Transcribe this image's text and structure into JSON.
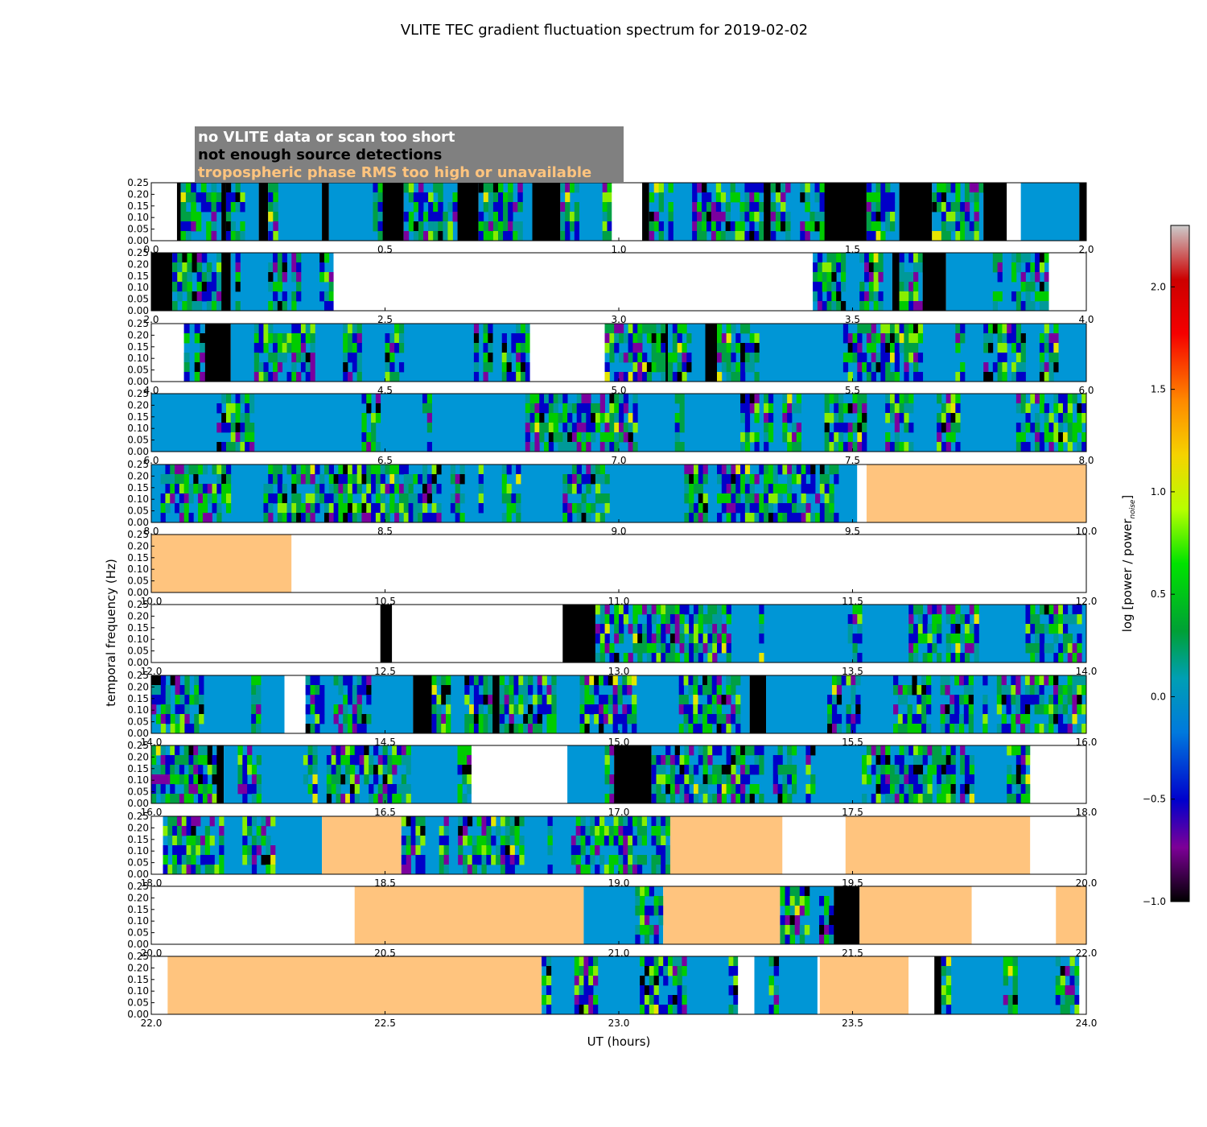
{
  "chart_data": {
    "type": "heatmap",
    "title": "VLITE TEC gradient fluctuation spectrum for 2019-02-02",
    "xlabel": "UT (hours)",
    "ylabel": "temporal frequency (Hz)",
    "ylim": [
      0,
      0.25
    ],
    "yticks": [
      "0.00",
      "0.05",
      "0.10",
      "0.15",
      "0.20",
      "0.25"
    ],
    "colorbar": {
      "label": "log [power / power",
      "label_sub": "noise",
      "label_end": "]",
      "range": [
        -1.0,
        2.3
      ],
      "ticks": [
        "−1.0",
        "−0.5",
        "0.0",
        "0.5",
        "1.0",
        "1.5",
        "2.0"
      ],
      "tick_values": [
        -1.0,
        -0.5,
        0.0,
        0.5,
        1.0,
        1.5,
        2.0
      ],
      "colormap": "spectral"
    },
    "legend": {
      "placement": "top-left",
      "items": [
        {
          "text": "no VLITE data or scan too short",
          "bg": "#808080",
          "color": "#ffffff"
        },
        {
          "text": "not enough source detections",
          "bg": "#808080",
          "color": "#000000"
        },
        {
          "text": "tropospheric phase RMS too high or unavailable",
          "bg": "#808080",
          "color": "#ffc47e"
        }
      ]
    },
    "status_colors": {
      "no_data": "#ffffff",
      "few_detections": "#000000",
      "troposphere": "#ffc47e",
      "base_spectrum": "#0096d6"
    },
    "panels": [
      {
        "range": [
          0,
          2
        ],
        "ticks": [
          "0.0",
          "0.5",
          "1.0",
          "1.5",
          "2.0"
        ],
        "segments": [
          [
            "nodata",
            0,
            0.055
          ],
          [
            "det",
            0.055,
            0.063
          ],
          [
            "spec",
            0.063,
            0.15
          ],
          [
            "det",
            0.15,
            0.16
          ],
          [
            "spec",
            0.16,
            0.23
          ],
          [
            "det",
            0.23,
            0.25
          ],
          [
            "spec",
            0.25,
            0.365
          ],
          [
            "det",
            0.365,
            0.38
          ],
          [
            "spec",
            0.38,
            0.495
          ],
          [
            "det",
            0.495,
            0.54
          ],
          [
            "spec",
            0.54,
            0.655
          ],
          [
            "det",
            0.655,
            0.7
          ],
          [
            "spec",
            0.7,
            0.815
          ],
          [
            "det",
            0.815,
            0.875
          ],
          [
            "spec",
            0.875,
            0.985
          ],
          [
            "nodata",
            0.985,
            1.05
          ],
          [
            "det",
            1.05,
            1.065
          ],
          [
            "spec",
            1.065,
            1.31
          ],
          [
            "det",
            1.31,
            1.325
          ],
          [
            "spec",
            1.325,
            1.44
          ],
          [
            "det",
            1.44,
            1.53
          ],
          [
            "spec",
            1.53,
            1.6
          ],
          [
            "det",
            1.6,
            1.67
          ],
          [
            "spec",
            1.67,
            1.78
          ],
          [
            "det",
            1.78,
            1.83
          ],
          [
            "nodata",
            1.83,
            1.86
          ],
          [
            "spec",
            1.86,
            1.985
          ],
          [
            "det",
            1.985,
            2.0
          ]
        ]
      },
      {
        "range": [
          2,
          4
        ],
        "ticks": [
          "2.0",
          "2.5",
          "3.0",
          "3.5",
          "4.0"
        ],
        "segments": [
          [
            "det",
            2.0,
            2.045
          ],
          [
            "spec",
            2.045,
            2.15
          ],
          [
            "det",
            2.15,
            2.17
          ],
          [
            "spec",
            2.17,
            2.39
          ],
          [
            "nodata",
            2.39,
            3.415
          ],
          [
            "spec",
            3.415,
            3.585
          ],
          [
            "det",
            3.585,
            3.6
          ],
          [
            "spec",
            3.6,
            3.65
          ],
          [
            "det",
            3.65,
            3.7
          ],
          [
            "spec",
            3.7,
            3.92
          ],
          [
            "nodata",
            3.92,
            4.0
          ]
        ]
      },
      {
        "range": [
          4,
          6
        ],
        "ticks": [
          "4.0",
          "4.5",
          "5.0",
          "5.5",
          "6.0"
        ],
        "segments": [
          [
            "nodata",
            4.0,
            4.07
          ],
          [
            "spec",
            4.07,
            4.115
          ],
          [
            "det",
            4.115,
            4.17
          ],
          [
            "spec",
            4.17,
            4.81
          ],
          [
            "nodata",
            4.81,
            4.97
          ],
          [
            "spec",
            4.97,
            5.1
          ],
          [
            "det",
            5.1,
            5.105
          ],
          [
            "spec",
            5.105,
            5.185
          ],
          [
            "det",
            5.185,
            5.21
          ],
          [
            "spec",
            5.21,
            6.0
          ]
        ]
      },
      {
        "range": [
          6,
          8
        ],
        "ticks": [
          "6.0",
          "6.5",
          "7.0",
          "7.5",
          "8.0"
        ],
        "segments": [
          [
            "spec",
            6.0,
            8.0
          ]
        ]
      },
      {
        "range": [
          8,
          10
        ],
        "ticks": [
          "8.0",
          "8.5",
          "9.0",
          "9.5",
          "10.0"
        ],
        "segments": [
          [
            "spec",
            8.0,
            9.51
          ],
          [
            "nodata",
            9.51,
            9.53
          ],
          [
            "tropo",
            9.53,
            10.0
          ]
        ]
      },
      {
        "range": [
          10,
          12
        ],
        "ticks": [
          "10.0",
          "10.5",
          "11.0",
          "11.5",
          "12.0"
        ],
        "segments": [
          [
            "tropo",
            10.0,
            10.3
          ],
          [
            "nodata",
            10.3,
            12.0
          ]
        ]
      },
      {
        "range": [
          12,
          14
        ],
        "ticks": [
          "12.0",
          "12.5",
          "13.0",
          "13.5",
          "14.0"
        ],
        "segments": [
          [
            "nodata",
            12.0,
            12.49
          ],
          [
            "det",
            12.49,
            12.515
          ],
          [
            "nodata",
            12.515,
            12.88
          ],
          [
            "det",
            12.88,
            12.95
          ],
          [
            "spec",
            12.95,
            14.0
          ]
        ]
      },
      {
        "range": [
          14,
          16
        ],
        "ticks": [
          "14.0",
          "14.5",
          "15.0",
          "15.5",
          "16.0"
        ],
        "segments": [
          [
            "spec",
            14.0,
            14.285
          ],
          [
            "nodata",
            14.285,
            14.33
          ],
          [
            "spec",
            14.33,
            14.56
          ],
          [
            "det",
            14.56,
            14.6
          ],
          [
            "spec",
            14.6,
            14.73
          ],
          [
            "det",
            14.73,
            14.745
          ],
          [
            "spec",
            14.745,
            15.28
          ],
          [
            "det",
            15.28,
            15.315
          ],
          [
            "spec",
            15.315,
            16.0
          ]
        ]
      },
      {
        "range": [
          16,
          18
        ],
        "ticks": [
          "16.0",
          "16.5",
          "17.0",
          "17.5",
          "18.0"
        ],
        "segments": [
          [
            "spec",
            16.0,
            16.14
          ],
          [
            "det",
            16.14,
            16.155
          ],
          [
            "spec",
            16.155,
            16.685
          ],
          [
            "nodata",
            16.685,
            16.89
          ],
          [
            "spec",
            16.89,
            16.99
          ],
          [
            "det",
            16.99,
            17.07
          ],
          [
            "spec",
            17.07,
            17.88
          ],
          [
            "nodata",
            17.88,
            18.0
          ]
        ]
      },
      {
        "range": [
          18,
          20
        ],
        "ticks": [
          "18.0",
          "18.5",
          "19.0",
          "19.5",
          "20.0"
        ],
        "segments": [
          [
            "nodata",
            18.0,
            18.025
          ],
          [
            "spec",
            18.025,
            18.365
          ],
          [
            "tropo",
            18.365,
            18.535
          ],
          [
            "spec",
            18.535,
            19.11
          ],
          [
            "tropo",
            19.11,
            19.35
          ],
          [
            "nodata",
            19.35,
            19.485
          ],
          [
            "tropo",
            19.485,
            19.88
          ],
          [
            "nodata",
            19.88,
            20.0
          ]
        ]
      },
      {
        "range": [
          20,
          22
        ],
        "ticks": [
          "20.0",
          "20.5",
          "21.0",
          "21.5",
          "22.0"
        ],
        "segments": [
          [
            "nodata",
            20.0,
            20.435
          ],
          [
            "tropo",
            20.435,
            20.925
          ],
          [
            "spec",
            20.925,
            21.095
          ],
          [
            "tropo",
            21.095,
            21.345
          ],
          [
            "spec",
            21.345,
            21.46
          ],
          [
            "det",
            21.46,
            21.515
          ],
          [
            "tropo",
            21.515,
            21.755
          ],
          [
            "nodata",
            21.755,
            21.935
          ],
          [
            "tropo",
            21.935,
            22.0
          ]
        ]
      },
      {
        "range": [
          22,
          24
        ],
        "ticks": [
          "22.0",
          "22.5",
          "23.0",
          "23.5",
          "24.0"
        ],
        "segments": [
          [
            "nodata",
            22.0,
            22.035
          ],
          [
            "tropo",
            22.035,
            22.835
          ],
          [
            "spec",
            22.835,
            23.255
          ],
          [
            "nodata",
            23.255,
            23.29
          ],
          [
            "spec",
            23.29,
            23.425
          ],
          [
            "nodata",
            23.425,
            23.43
          ],
          [
            "tropo",
            23.43,
            23.62
          ],
          [
            "nodata",
            23.62,
            23.675
          ],
          [
            "det",
            23.675,
            23.69
          ],
          [
            "spec",
            23.69,
            23.985
          ],
          [
            "nodata",
            23.985,
            24.0
          ]
        ]
      }
    ]
  }
}
